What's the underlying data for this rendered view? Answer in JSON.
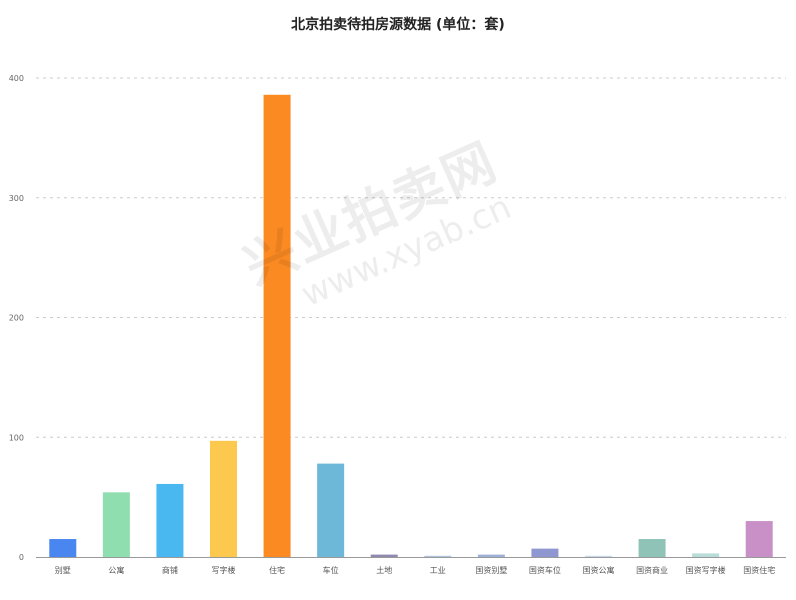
{
  "chart_data": {
    "type": "bar",
    "title": "北京拍卖待拍房源数据 (单位：套)",
    "categories": [
      "别墅",
      "公寓",
      "商铺",
      "写字楼",
      "住宅",
      "车位",
      "土地",
      "工业",
      "国资别墅",
      "国资车位",
      "国资公寓",
      "国资商业",
      "国资写字楼",
      "国资住宅"
    ],
    "values": [
      15,
      54,
      61,
      97,
      386,
      78,
      2,
      1,
      2,
      7,
      1,
      15,
      3,
      30
    ],
    "colors": [
      "#4a86f0",
      "#8edeb0",
      "#4ab8f0",
      "#fcc94e",
      "#fb8a22",
      "#6db7d8",
      "#8e8ab0",
      "#b0c4dc",
      "#9eb0d8",
      "#8f97d0",
      "#c8d8e8",
      "#8fc3b8",
      "#b8ddd8",
      "#c990c8"
    ],
    "ylim": [
      0,
      400
    ],
    "yticks": [
      0,
      100,
      200,
      300,
      400
    ],
    "grid": true,
    "legend": "none"
  },
  "watermark": {
    "text": "兴业拍卖网",
    "url": "www.xyab.cn"
  }
}
